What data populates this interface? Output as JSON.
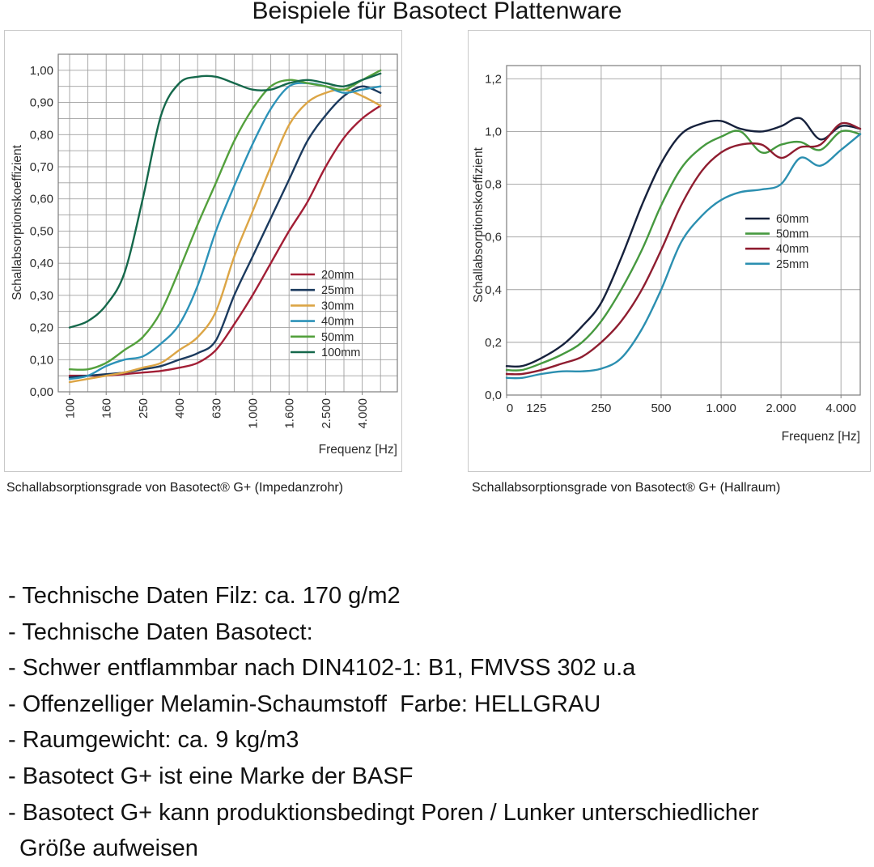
{
  "page": {
    "title": "Beispiele für Basotect Plattenware"
  },
  "captions": {
    "left": "Schallabsorptionsgrade von Basotect® G+ (Impedanzrohr)",
    "right": "Schallabsorptionsgrade von Basotect® G+ (Hallraum)"
  },
  "chart_data": [
    {
      "id": "impedanzrohr",
      "type": "line",
      "title": "Schallabsorptionsgrade von Basotect® G+ (Impedanzrohr)",
      "xlabel": "Frequenz [Hz]",
      "ylabel": "Schallabsorptionskoeffizient",
      "x_scale": "third-octave-log",
      "x_hz": [
        100,
        125,
        160,
        200,
        250,
        315,
        400,
        500,
        630,
        800,
        1000,
        1250,
        1600,
        2000,
        2500,
        3150,
        4000,
        5000
      ],
      "x_tick_labels": [
        "100",
        "160",
        "250",
        "400",
        "630",
        "1.000",
        "1.600",
        "2.500",
        "4.000"
      ],
      "ylim": [
        0,
        1.05
      ],
      "y_minor_grid": 0.05,
      "grid": true,
      "legend_position": "lower-right-inside",
      "y_ticks": [
        {
          "v": 0.0,
          "label": "0,00"
        },
        {
          "v": 0.1,
          "label": "0,10"
        },
        {
          "v": 0.2,
          "label": "0,20"
        },
        {
          "v": 0.3,
          "label": "0,30"
        },
        {
          "v": 0.4,
          "label": "0,40"
        },
        {
          "v": 0.5,
          "label": "0,50"
        },
        {
          "v": 0.6,
          "label": "0,60"
        },
        {
          "v": 0.7,
          "label": "0,70"
        },
        {
          "v": 0.8,
          "label": "0,80"
        },
        {
          "v": 0.9,
          "label": "0,90"
        },
        {
          "v": 1.0,
          "label": "1,00"
        }
      ],
      "series": [
        {
          "name": "20mm",
          "color": "#a21e35",
          "values": [
            0.05,
            0.05,
            0.05,
            0.055,
            0.06,
            0.065,
            0.075,
            0.09,
            0.13,
            0.21,
            0.3,
            0.4,
            0.5,
            0.59,
            0.7,
            0.79,
            0.85,
            0.89
          ]
        },
        {
          "name": "25mm",
          "color": "#1b3a5e",
          "values": [
            0.045,
            0.05,
            0.055,
            0.06,
            0.07,
            0.08,
            0.1,
            0.12,
            0.16,
            0.3,
            0.42,
            0.54,
            0.66,
            0.78,
            0.86,
            0.92,
            0.95,
            0.93
          ]
        },
        {
          "name": "30mm",
          "color": "#dca545",
          "values": [
            0.03,
            0.04,
            0.05,
            0.06,
            0.075,
            0.09,
            0.13,
            0.17,
            0.25,
            0.42,
            0.56,
            0.7,
            0.83,
            0.9,
            0.93,
            0.94,
            0.92,
            0.89
          ]
        },
        {
          "name": "40mm",
          "color": "#2c92b8",
          "values": [
            0.04,
            0.05,
            0.08,
            0.1,
            0.11,
            0.15,
            0.21,
            0.33,
            0.5,
            0.64,
            0.77,
            0.88,
            0.95,
            0.96,
            0.95,
            0.93,
            0.94,
            0.95
          ]
        },
        {
          "name": "50mm",
          "color": "#53a03c",
          "values": [
            0.07,
            0.07,
            0.09,
            0.13,
            0.17,
            0.25,
            0.38,
            0.52,
            0.65,
            0.78,
            0.88,
            0.95,
            0.97,
            0.96,
            0.95,
            0.94,
            0.97,
            1.0
          ]
        },
        {
          "name": "100mm",
          "color": "#15684b",
          "values": [
            0.2,
            0.22,
            0.27,
            0.37,
            0.6,
            0.86,
            0.96,
            0.98,
            0.98,
            0.96,
            0.94,
            0.94,
            0.96,
            0.97,
            0.96,
            0.95,
            0.97,
            0.99
          ]
        }
      ]
    },
    {
      "id": "hallraum",
      "type": "line",
      "title": "Schallabsorptionsgrade von Basotect® G+ (Hallraum)",
      "xlabel": "Frequenz [Hz]",
      "ylabel": "Schallabsorptionskoeffizient",
      "x_scale": "log",
      "x_hz": [
        100,
        125,
        160,
        200,
        250,
        315,
        400,
        500,
        630,
        800,
        1000,
        1250,
        1600,
        2000,
        2500,
        3150,
        4000,
        5000
      ],
      "x_ticks": [
        {
          "label": "0",
          "hz": 0
        },
        {
          "label": "125",
          "hz": 125
        },
        {
          "label": "250",
          "hz": 250
        },
        {
          "label": "500",
          "hz": 500
        },
        {
          "label": "1.000",
          "hz": 1000
        },
        {
          "label": "2.000",
          "hz": 2000
        },
        {
          "label": "4.000",
          "hz": 4000
        }
      ],
      "ylim": [
        0,
        1.25
      ],
      "grid": true,
      "legend_position": "middle-right-inside",
      "y_ticks": [
        {
          "v": 0.0,
          "label": "0,0"
        },
        {
          "v": 0.2,
          "label": "0,2"
        },
        {
          "v": 0.4,
          "label": "0,4"
        },
        {
          "v": 0.6,
          "label": "0,6"
        },
        {
          "v": 0.8,
          "label": "0,8"
        },
        {
          "v": 1.0,
          "label": "1,0"
        },
        {
          "v": 1.2,
          "label": "1,2"
        }
      ],
      "series": [
        {
          "name": "60mm",
          "color": "#16213c",
          "values": [
            0.11,
            0.14,
            0.19,
            0.26,
            0.35,
            0.52,
            0.72,
            0.88,
            0.99,
            1.03,
            1.04,
            1.01,
            1.0,
            1.02,
            1.05,
            0.97,
            1.02,
            1.01
          ]
        },
        {
          "name": "50mm",
          "color": "#46993f",
          "values": [
            0.095,
            0.12,
            0.155,
            0.2,
            0.28,
            0.4,
            0.55,
            0.72,
            0.86,
            0.94,
            0.98,
            1.0,
            0.92,
            0.95,
            0.96,
            0.93,
            1.0,
            0.99
          ]
        },
        {
          "name": "40mm",
          "color": "#8f1d30",
          "values": [
            0.08,
            0.095,
            0.12,
            0.145,
            0.2,
            0.28,
            0.4,
            0.55,
            0.72,
            0.85,
            0.92,
            0.95,
            0.95,
            0.9,
            0.94,
            0.95,
            1.03,
            1.01
          ]
        },
        {
          "name": "25mm",
          "color": "#2b8fb0",
          "values": [
            0.065,
            0.08,
            0.09,
            0.09,
            0.1,
            0.14,
            0.25,
            0.4,
            0.58,
            0.68,
            0.74,
            0.77,
            0.78,
            0.8,
            0.9,
            0.87,
            0.93,
            0.99
          ]
        }
      ]
    }
  ],
  "specs": {
    "lines": [
      {
        "text": "- Technische Daten Filz: ca. 170 g/m2",
        "indent": false
      },
      {
        "text": "- Technische Daten Basotect:",
        "indent": false
      },
      {
        "text": "- Schwer entflammbar nach DIN4102-1: B1, FMVSS 302 u.a",
        "indent": false
      },
      {
        "text": "- Offenzelliger Melamin-Schaumstoff  Farbe: HELLGRAU",
        "indent": false
      },
      {
        "text": "- Raumgewicht: ca. 9 kg/m3",
        "indent": false
      },
      {
        "text": "- Basotect G+ ist eine Marke der BASF",
        "indent": false
      },
      {
        "text": "- Basotect G+ kann produktionsbedingt Poren / Lunker unterschiedlicher",
        "indent": false
      },
      {
        "text": "Größe aufweisen",
        "indent": true
      }
    ]
  },
  "style_colors": {
    "grid": "#a0a0a0",
    "frame": "#7d7d7d",
    "axis_text": "#2b2b2b"
  }
}
